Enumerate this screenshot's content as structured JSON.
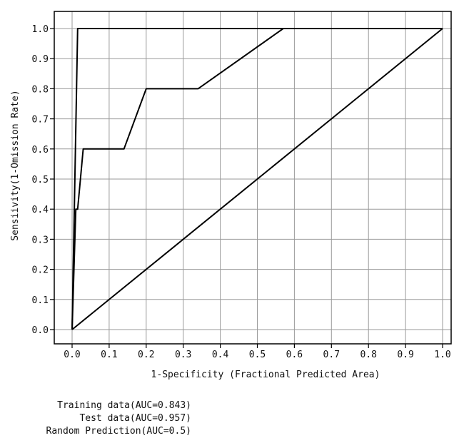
{
  "chart_data": {
    "type": "line",
    "title": "",
    "xlabel": "1-Specificity (Fractional Predicted Area)",
    "ylabel": "Sensiivity(1-Omission Rate)",
    "xlim": [
      0,
      1
    ],
    "ylim": [
      0,
      1
    ],
    "x_ticks": [
      0.0,
      0.1,
      0.2,
      0.3,
      0.4,
      0.5,
      0.6,
      0.7,
      0.8,
      0.9,
      1.0
    ],
    "y_ticks": [
      0.0,
      0.1,
      0.2,
      0.3,
      0.4,
      0.5,
      0.6,
      0.7,
      0.8,
      0.9,
      1.0
    ],
    "x_tick_labels": [
      "0.0",
      "0.1",
      "0.2",
      "0.3",
      "0.4",
      "0.5",
      "0.6",
      "0.7",
      "0.8",
      "0.9",
      "1.0"
    ],
    "y_tick_labels": [
      "0.0",
      "0.1",
      "0.2",
      "0.3",
      "0.4",
      "0.5",
      "0.6",
      "0.7",
      "0.8",
      "0.9",
      "1.0"
    ],
    "grid": true,
    "legend_position": "below-left",
    "series": [
      {
        "name": "Training data(AUC=0.843)",
        "color": "#000000",
        "x": [
          0.0,
          0.01,
          0.015,
          0.03,
          0.04,
          0.14,
          0.2,
          0.34,
          0.57,
          1.0
        ],
        "y": [
          0.0,
          0.4,
          0.4,
          0.6,
          0.6,
          0.6,
          0.8,
          0.8,
          1.0,
          1.0
        ]
      },
      {
        "name": "Test data(AUC=0.957)",
        "color": "#000000",
        "x": [
          0.0,
          0.015,
          1.0
        ],
        "y": [
          0.0,
          1.0,
          1.0
        ]
      },
      {
        "name": "Random Prediction(AUC=0.5)",
        "color": "#000000",
        "x": [
          0.0,
          1.0
        ],
        "y": [
          0.0,
          1.0
        ]
      }
    ]
  }
}
